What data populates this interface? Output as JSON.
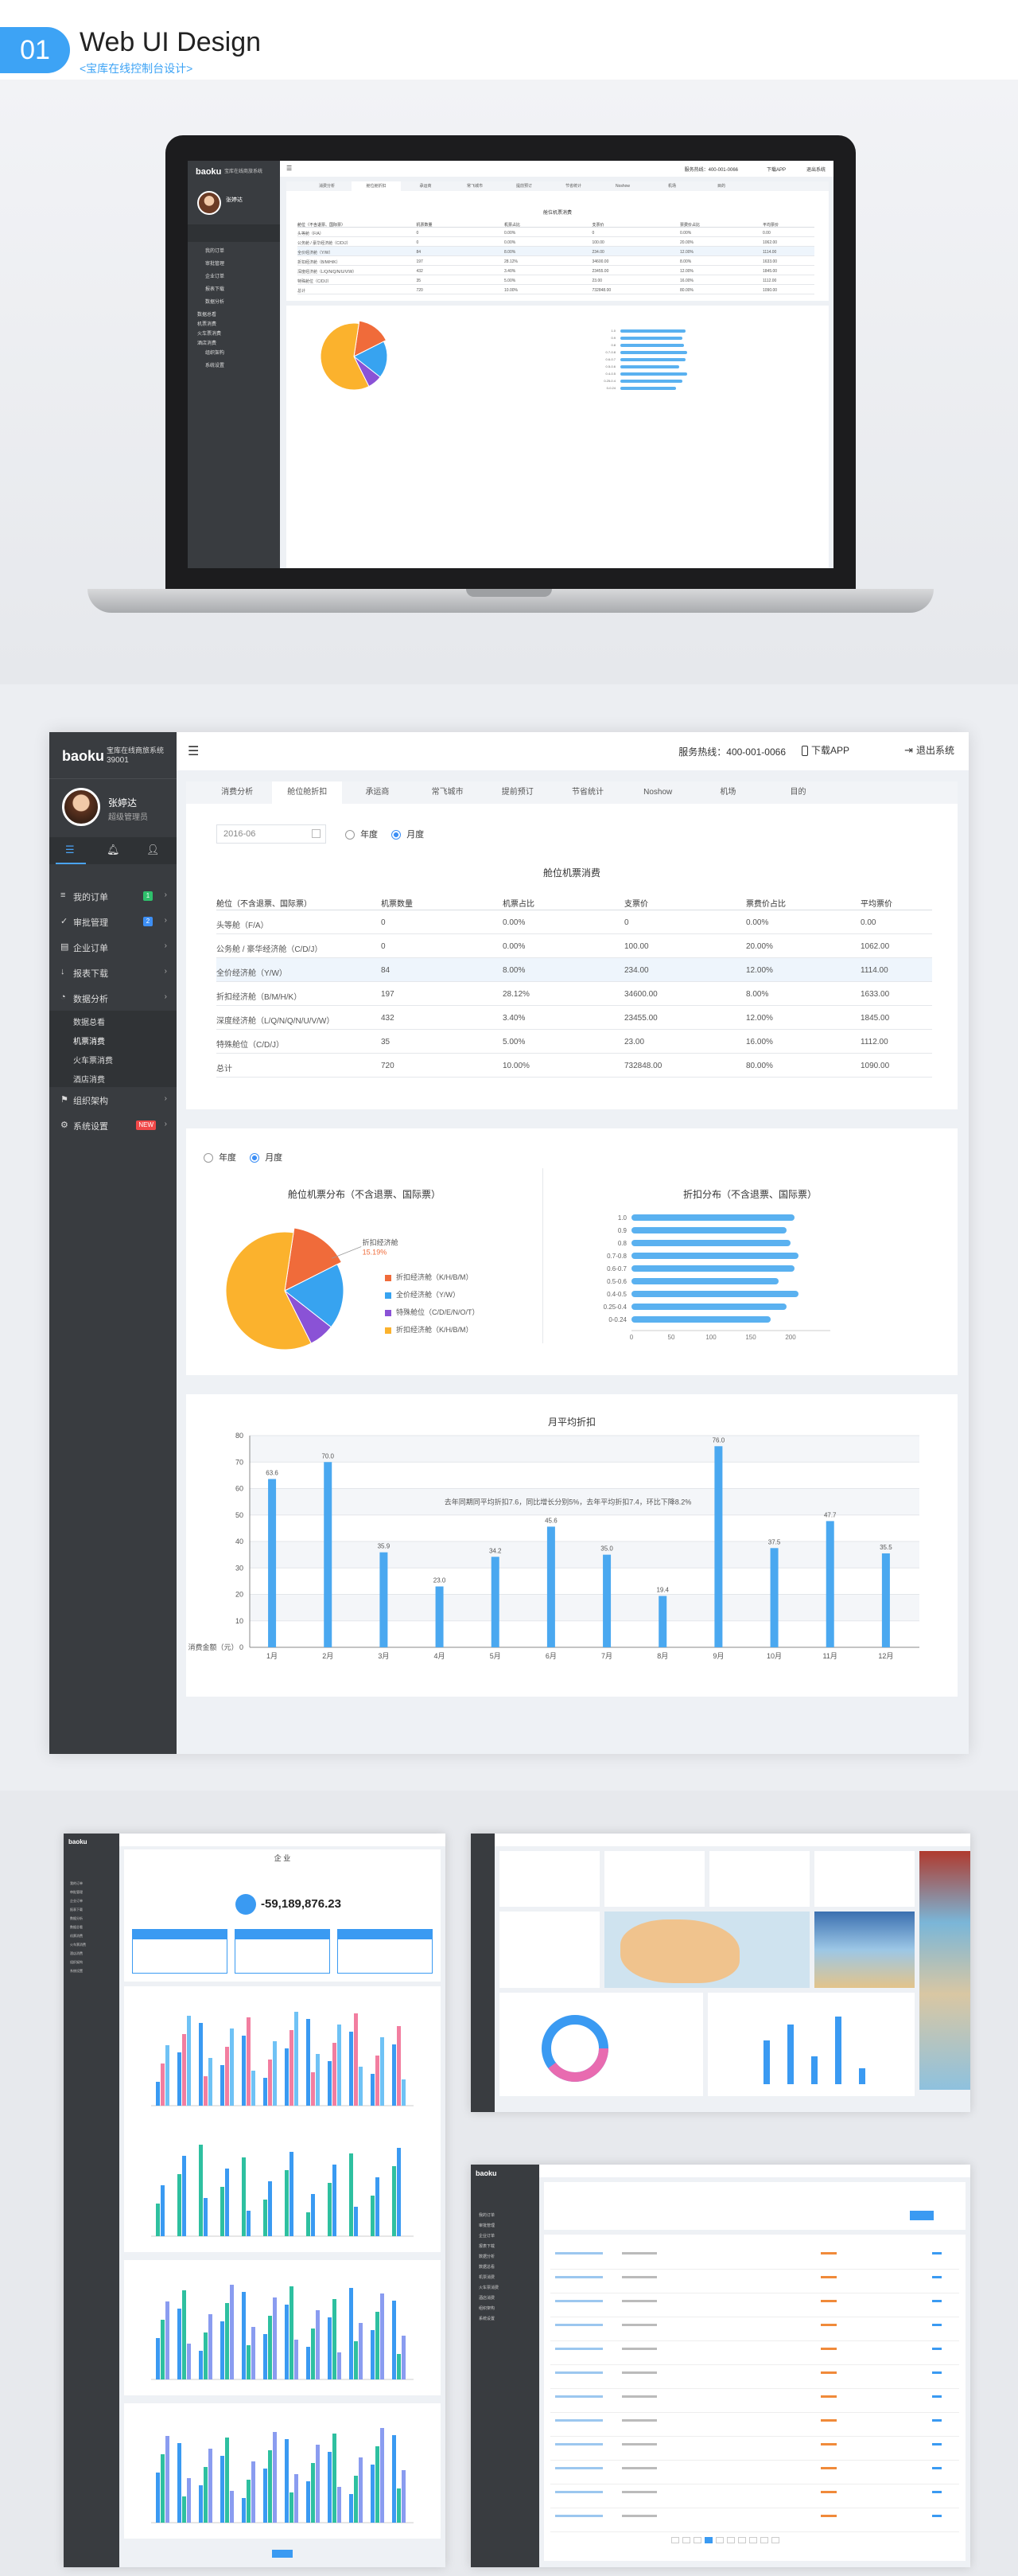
{
  "header": {
    "number": "01",
    "title": "Web UI Design",
    "subtitle": "<宝库在线控制台设计>"
  },
  "app": {
    "logo": "baoku",
    "company": "宝库在线商旅系统",
    "company_id": "39001",
    "user_name": "张婷达",
    "user_role": "超级管理员",
    "hotline": "服务热线：400-001-0066",
    "download": "下载APP",
    "logout": "退出系统",
    "menu": [
      {
        "label": "我的订单",
        "badge": "1",
        "badge_color": "#2ec06b"
      },
      {
        "label": "审批管理",
        "badge": "2",
        "badge_color": "#3d8ff5"
      },
      {
        "label": "企业订单",
        "badge": "",
        "badge_color": ""
      },
      {
        "label": "报表下载",
        "badge": "",
        "badge_color": ""
      },
      {
        "label": "数据分析",
        "badge": "",
        "badge_color": ""
      },
      {
        "label": "数据总看",
        "badge": "",
        "badge_color": ""
      },
      {
        "label": "机票消费",
        "badge": "",
        "badge_color": ""
      },
      {
        "label": "火车票消费",
        "badge": "",
        "badge_color": ""
      },
      {
        "label": "酒店消费",
        "badge": "",
        "badge_color": ""
      },
      {
        "label": "组织架构",
        "badge": "",
        "badge_color": ""
      },
      {
        "label": "系统设置",
        "badge": "NEW",
        "badge_color": "#f04848"
      }
    ],
    "tabs": [
      "消费分析",
      "舱位舱折扣",
      "承运商",
      "常飞城市",
      "提前预订",
      "节省统计",
      "Noshow",
      "机场",
      "目的"
    ],
    "date": "2016-06",
    "radio_year": "年度",
    "radio_month": "月度",
    "table_title": "舱位机票消费",
    "table_headers": [
      "舱位（不含退票、国际票）",
      "机票数量",
      "机票占比",
      "支票价",
      "票费价占比",
      "平均票价"
    ],
    "table_rows": [
      [
        "头等舱（F/A）",
        "0",
        "0.00%",
        "0",
        "0.00%",
        "0.00"
      ],
      [
        "公务舱 / 豪华经济舱（C/D/J）",
        "0",
        "0.00%",
        "100.00",
        "20.00%",
        "1062.00"
      ],
      [
        "全价经济舱（Y/W）",
        "84",
        "8.00%",
        "234.00",
        "12.00%",
        "1114.00"
      ],
      [
        "折扣经济舱（B/M/H/K）",
        "197",
        "28.12%",
        "34600.00",
        "8.00%",
        "1633.00"
      ],
      [
        "深度经济舱（L/Q/N/Q/N/U/V/W）",
        "432",
        "3.40%",
        "23455.00",
        "12.00%",
        "1845.00"
      ],
      [
        "特殊舱位（C/D/J）",
        "35",
        "5.00%",
        "23.00",
        "16.00%",
        "1112.00"
      ],
      [
        "总计",
        "720",
        "10.00%",
        "732848.00",
        "80.00%",
        "1090.00"
      ]
    ],
    "pie_title": "舱位机票分布（不含退票、国际票）",
    "pie_callout": "折扣经济舱",
    "pie_callout_pct": "15.19%",
    "pie_legend": [
      "折扣经济舱（K/H/B/M）",
      "全价经济舱（Y/W）",
      "特殊舱位（C/D/E/N/O/T）",
      "折扣经济舱（K/H/B/M）"
    ],
    "hbar_title": "折扣分布（不含退票、国际票）",
    "bar_title": "月平均折扣",
    "bar_annotation": "去年同期同平均折扣7.6，同比增长分别5%，去年平均折扣7.4，环比下降8.2%",
    "bar_ylabel": "消费金额（元）",
    "dash2_title": "企 业",
    "dash2_amount": "-59,189,876.23"
  },
  "chart_data": [
    {
      "type": "pie",
      "title": "舱位机票分布（不含退票、国际票）",
      "labels": [
        "折扣经济舱（K/H/B/M）",
        "全价经济舱（Y/W）",
        "特殊舱位（C/D/E/N/O/T）",
        "折扣经济舱（K/H/B/M）"
      ],
      "values": [
        15.19,
        18,
        7,
        59.81
      ],
      "colors": [
        "#f06b3a",
        "#37a3f0",
        "#8a52d6",
        "#fbb22d"
      ]
    },
    {
      "type": "bar",
      "orientation": "horizontal",
      "title": "折扣分布（不含退票、国际票）",
      "categories": [
        "1.0",
        "0.9",
        "0.8",
        "0.7-0.8",
        "0.6-0.7",
        "0.5-0.6",
        "0.4-0.5",
        "0.25-0.4",
        "0-0.24"
      ],
      "values": [
        205,
        195,
        200,
        210,
        205,
        185,
        210,
        195,
        175
      ],
      "xlim": [
        0,
        250
      ],
      "xticks": [
        "0",
        "50",
        "100",
        "150",
        "200"
      ]
    },
    {
      "type": "bar",
      "title": "月平均折扣",
      "ylabel": "消费金额（元）",
      "categories": [
        "1月",
        "2月",
        "3月",
        "4月",
        "5月",
        "6月",
        "7月",
        "8月",
        "9月",
        "10月",
        "11月",
        "12月"
      ],
      "values": [
        63.6,
        70.0,
        35.9,
        23.0,
        34.2,
        45.6,
        35.0,
        19.4,
        76.0,
        37.5,
        47.7,
        35.5
      ],
      "ylim": [
        0,
        80
      ],
      "yticks": [
        0,
        10,
        20,
        30,
        40,
        50,
        60,
        70,
        80
      ]
    }
  ]
}
